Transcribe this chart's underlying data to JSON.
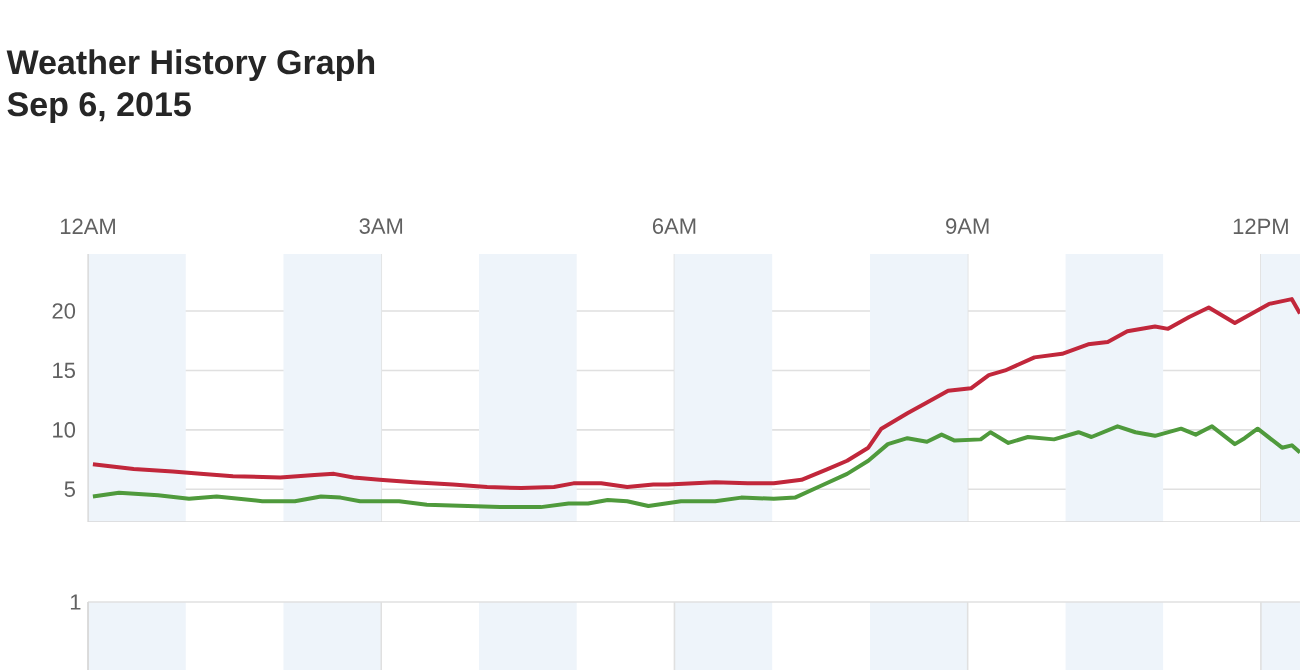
{
  "chart_data": [
    {
      "type": "line",
      "title": "Weather History Graph",
      "subtitle": "Sep 6, 2015",
      "xlim": [
        "2015-09-06T00:00",
        "2015-09-06T12:24"
      ],
      "xticks": [
        {
          "value": "2015-09-06T00:00",
          "label": "12AM"
        },
        {
          "value": "2015-09-06T03:00",
          "label": "3AM"
        },
        {
          "value": "2015-09-06T06:00",
          "label": "6AM"
        },
        {
          "value": "2015-09-06T09:00",
          "label": "9AM"
        },
        {
          "value": "2015-09-06T12:00",
          "label": "12PM"
        }
      ],
      "ylim": [
        2.25,
        24.8
      ],
      "yticks": [
        5,
        10,
        15,
        20
      ],
      "grid": true,
      "annotations": [
        "1"
      ],
      "bands": [
        {
          "axis": "x",
          "from": "2015-09-06T00:00",
          "to": "2015-09-06T01:00",
          "color": "#eef4fa"
        },
        {
          "axis": "x",
          "from": "2015-09-06T02:00",
          "to": "2015-09-06T03:00",
          "color": "#eef4fa"
        },
        {
          "axis": "x",
          "from": "2015-09-06T04:00",
          "to": "2015-09-06T05:00",
          "color": "#eef4fa"
        },
        {
          "axis": "x",
          "from": "2015-09-06T06:00",
          "to": "2015-09-06T07:00",
          "color": "#eef4fa"
        },
        {
          "axis": "x",
          "from": "2015-09-06T08:00",
          "to": "2015-09-06T09:00",
          "color": "#eef4fa"
        },
        {
          "axis": "x",
          "from": "2015-09-06T10:00",
          "to": "2015-09-06T11:00",
          "color": "#eef4fa"
        },
        {
          "axis": "x",
          "from": "2015-09-06T12:00",
          "to": "2015-09-06T12:24",
          "color": "#eef4fa"
        }
      ],
      "series": [
        {
          "color": "#c1273b",
          "x": [
            "2015-09-06T00:03",
            "2015-09-06T00:28",
            "2015-09-06T00:52",
            "2015-09-06T01:09",
            "2015-09-06T01:29",
            "2015-09-06T01:58",
            "2015-09-06T02:19",
            "2015-09-06T02:31",
            "2015-09-06T02:43",
            "2015-09-06T02:59",
            "2015-09-06T03:20",
            "2015-09-06T03:44",
            "2015-09-06T04:05",
            "2015-09-06T04:26",
            "2015-09-06T04:46",
            "2015-09-06T04:58",
            "2015-09-06T05:15",
            "2015-09-06T05:31",
            "2015-09-06T05:47",
            "2015-09-06T05:56",
            "2015-09-06T06:25",
            "2015-09-06T06:45",
            "2015-09-06T07:01",
            "2015-09-06T07:18",
            "2015-09-06T07:34",
            "2015-09-06T07:46",
            "2015-09-06T07:59",
            "2015-09-06T08:07",
            "2015-09-06T08:23",
            "2015-09-06T08:35",
            "2015-09-06T08:48",
            "2015-09-06T09:02",
            "2015-09-06T09:13",
            "2015-09-06T09:23",
            "2015-09-06T09:41",
            "2015-09-06T09:58",
            "2015-09-06T10:14",
            "2015-09-06T10:26",
            "2015-09-06T10:38",
            "2015-09-06T10:55",
            "2015-09-06T11:03",
            "2015-09-06T11:16",
            "2015-09-06T11:28",
            "2015-09-06T11:44",
            "2015-09-06T12:05",
            "2015-09-06T12:19",
            "2015-09-06T12:24"
          ],
          "values": [
            7.1,
            6.7,
            6.5,
            6.3,
            6.1,
            6.0,
            6.2,
            6.3,
            6.0,
            5.8,
            5.6,
            5.4,
            5.2,
            5.1,
            5.2,
            5.5,
            5.5,
            5.2,
            5.4,
            5.4,
            5.6,
            5.5,
            5.5,
            5.8,
            6.7,
            7.4,
            8.5,
            10.1,
            11.4,
            12.3,
            13.3,
            13.5,
            14.6,
            15.0,
            16.1,
            16.4,
            17.2,
            17.4,
            18.3,
            18.7,
            18.5,
            19.5,
            20.3,
            19.0,
            20.6,
            21.0,
            19.8
          ]
        },
        {
          "color": "#4f9a3c",
          "x": [
            "2015-09-06T00:03",
            "2015-09-06T00:19",
            "2015-09-06T00:43",
            "2015-09-06T01:02",
            "2015-09-06T01:19",
            "2015-09-06T01:47",
            "2015-09-06T02:07",
            "2015-09-06T02:23",
            "2015-09-06T02:35",
            "2015-09-06T02:47",
            "2015-09-06T03:11",
            "2015-09-06T03:28",
            "2015-09-06T03:53",
            "2015-09-06T04:13",
            "2015-09-06T04:38",
            "2015-09-06T04:55",
            "2015-09-06T05:07",
            "2015-09-06T05:19",
            "2015-09-06T05:31",
            "2015-09-06T05:44",
            "2015-09-06T06:04",
            "2015-09-06T06:25",
            "2015-09-06T06:41",
            "2015-09-06T07:01",
            "2015-09-06T07:14",
            "2015-09-06T07:30",
            "2015-09-06T07:46",
            "2015-09-06T07:59",
            "2015-09-06T08:11",
            "2015-09-06T08:23",
            "2015-09-06T08:35",
            "2015-09-06T08:44",
            "2015-09-06T08:52",
            "2015-09-06T09:08",
            "2015-09-06T09:14",
            "2015-09-06T09:25",
            "2015-09-06T09:37",
            "2015-09-06T09:53",
            "2015-09-06T10:08",
            "2015-09-06T10:16",
            "2015-09-06T10:32",
            "2015-09-06T10:43",
            "2015-09-06T10:55",
            "2015-09-06T11:11",
            "2015-09-06T11:20",
            "2015-09-06T11:30",
            "2015-09-06T11:44",
            "2015-09-06T11:50",
            "2015-09-06T11:58",
            "2015-09-06T12:13",
            "2015-09-06T12:19",
            "2015-09-06T12:24"
          ],
          "values": [
            4.4,
            4.7,
            4.5,
            4.2,
            4.4,
            4.0,
            4.0,
            4.4,
            4.3,
            4.0,
            4.0,
            3.7,
            3.6,
            3.5,
            3.5,
            3.8,
            3.8,
            4.1,
            4.0,
            3.6,
            4.0,
            4.0,
            4.3,
            4.2,
            4.3,
            5.3,
            6.3,
            7.4,
            8.8,
            9.3,
            9.0,
            9.6,
            9.1,
            9.2,
            9.8,
            8.9,
            9.4,
            9.2,
            9.8,
            9.4,
            10.3,
            9.8,
            9.5,
            10.1,
            9.6,
            10.3,
            8.8,
            9.3,
            10.1,
            8.5,
            8.7,
            8.1
          ]
        }
      ]
    }
  ]
}
